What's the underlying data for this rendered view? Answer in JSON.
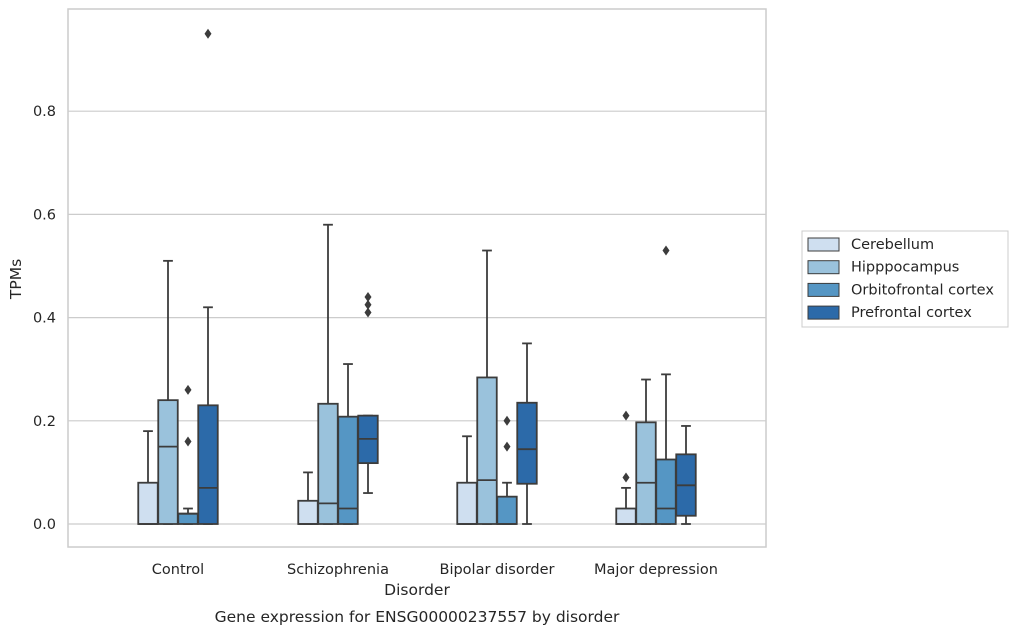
{
  "chart_data": {
    "type": "box",
    "caption": "Gene expression for ENSG00000237557 by disorder",
    "xlabel": "Disorder",
    "ylabel": "TPMs",
    "ylim": [
      -0.045,
      1.0
    ],
    "yticks": [
      0.0,
      0.2,
      0.4,
      0.6,
      0.8
    ],
    "ytick_labels": [
      "0.0",
      "0.2",
      "0.4",
      "0.6",
      "0.8"
    ],
    "grid": "horizontal",
    "legend_position": "right",
    "categories": [
      "Control",
      "Schizophrenia",
      "Bipolar disorder",
      "Major depression"
    ],
    "series": [
      {
        "name": "Cerebellum",
        "color": "#cfdff0",
        "boxes": [
          {
            "whisker_low": 0.0,
            "q1": 0.0,
            "median": 0.0,
            "q3": 0.08,
            "whisker_high": 0.18,
            "outliers": []
          },
          {
            "whisker_low": 0.0,
            "q1": 0.0,
            "median": 0.0,
            "q3": 0.045,
            "whisker_high": 0.1,
            "outliers": []
          },
          {
            "whisker_low": 0.0,
            "q1": 0.0,
            "median": 0.0,
            "q3": 0.08,
            "whisker_high": 0.17,
            "outliers": []
          },
          {
            "whisker_low": 0.0,
            "q1": 0.0,
            "median": 0.0,
            "q3": 0.03,
            "whisker_high": 0.07,
            "outliers": [
              0.09,
              0.21
            ]
          }
        ]
      },
      {
        "name": "Hipppocampus",
        "color": "#9ac2dc",
        "boxes": [
          {
            "whisker_low": 0.0,
            "q1": 0.0,
            "median": 0.15,
            "q3": 0.24,
            "whisker_high": 0.51,
            "outliers": []
          },
          {
            "whisker_low": 0.0,
            "q1": 0.0,
            "median": 0.04,
            "q3": 0.233,
            "whisker_high": 0.58,
            "outliers": []
          },
          {
            "whisker_low": 0.0,
            "q1": 0.0,
            "median": 0.085,
            "q3": 0.284,
            "whisker_high": 0.53,
            "outliers": []
          },
          {
            "whisker_low": 0.0,
            "q1": 0.0,
            "median": 0.08,
            "q3": 0.197,
            "whisker_high": 0.28,
            "outliers": []
          }
        ]
      },
      {
        "name": "Orbitofrontal cortex",
        "color": "#5596c4",
        "boxes": [
          {
            "whisker_low": 0.0,
            "q1": 0.0,
            "median": 0.02,
            "q3": 0.02,
            "whisker_high": 0.03,
            "outliers": [
              0.16,
              0.26
            ]
          },
          {
            "whisker_low": 0.0,
            "q1": 0.0,
            "median": 0.03,
            "q3": 0.208,
            "whisker_high": 0.31,
            "outliers": []
          },
          {
            "whisker_low": 0.0,
            "q1": 0.0,
            "median": 0.0,
            "q3": 0.053,
            "whisker_high": 0.08,
            "outliers": [
              0.15,
              0.2
            ]
          },
          {
            "whisker_low": 0.0,
            "q1": 0.0,
            "median": 0.03,
            "q3": 0.125,
            "whisker_high": 0.29,
            "outliers": [
              0.53
            ]
          }
        ]
      },
      {
        "name": "Prefrontal cortex",
        "color": "#2c6aa9",
        "boxes": [
          {
            "whisker_low": 0.0,
            "q1": 0.0,
            "median": 0.07,
            "q3": 0.23,
            "whisker_high": 0.42,
            "outliers": [
              0.95
            ]
          },
          {
            "whisker_low": 0.06,
            "q1": 0.118,
            "median": 0.165,
            "q3": 0.21,
            "whisker_high": 0.21,
            "outliers": [
              0.41,
              0.425,
              0.44
            ]
          },
          {
            "whisker_low": 0.0,
            "q1": 0.078,
            "median": 0.145,
            "q3": 0.235,
            "whisker_high": 0.35,
            "outliers": []
          },
          {
            "whisker_low": 0.0,
            "q1": 0.016,
            "median": 0.075,
            "q3": 0.135,
            "whisker_high": 0.19,
            "outliers": []
          }
        ]
      }
    ]
  }
}
